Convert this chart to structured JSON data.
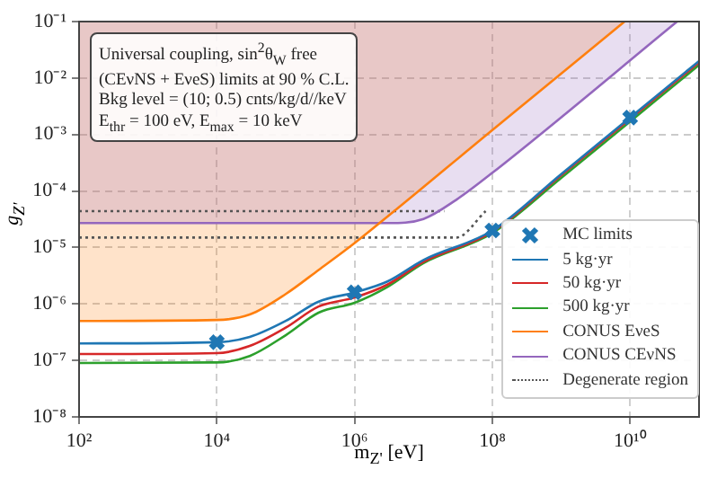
{
  "chart_data": {
    "type": "line",
    "xlabel": "m$_{Z'}$ [eV]",
    "ylabel": "g$_{Z'}$",
    "annotations": [
      "Universal coupling, sin$^{2}$θ$_{W}$ free",
      "(CEνNS + EνeS) limits at 90 % C.L.",
      "Bkg level = (10; 0.5) cnts/kg/d//keV",
      "E$_{thr}$ = 100 eV, E$_{max}$ = 10 keV"
    ],
    "log": "xy",
    "xlim": [
      100,
      100000000000.0
    ],
    "ylim": [
      1e-08,
      0.1
    ],
    "xticks": [
      {
        "value": 100,
        "label": "10²"
      },
      {
        "value": 10000,
        "label": "10⁴"
      },
      {
        "value": 1000000,
        "label": "10⁶"
      },
      {
        "value": 100000000,
        "label": "10⁸"
      },
      {
        "value": 10000000000,
        "label": "10¹⁰"
      }
    ],
    "yticks": [
      {
        "value": 1e-08,
        "label": "10⁻⁸"
      },
      {
        "value": 1e-07,
        "label": "10⁻⁷"
      },
      {
        "value": 1e-06,
        "label": "10⁻⁶"
      },
      {
        "value": 1e-05,
        "label": "10⁻⁵"
      },
      {
        "value": 0.0001,
        "label": "10⁻⁴"
      },
      {
        "value": 0.001,
        "label": "10⁻³"
      },
      {
        "value": 0.01,
        "label": "10⁻²"
      },
      {
        "value": 0.1,
        "label": "10⁻¹"
      }
    ],
    "grid": true,
    "legend": "bottom right",
    "marker": "none",
    "line_style": "solid",
    "series": [
      {
        "name": "MC limits",
        "type": "scatter",
        "marker": "cross",
        "color": "#1f77b4",
        "x": [
          10000,
          1000000,
          100000000,
          10000000000
        ],
        "values": [
          2.1e-07,
          1.6e-06,
          2e-05,
          0.002
        ]
      },
      {
        "name": "5 kg·yr",
        "color": "#1f77b4",
        "x": [
          100,
          10000,
          30000,
          100000,
          300000,
          1000000,
          3000000,
          10000000,
          100000000,
          1000000000,
          10000000000,
          100000000000
        ],
        "values": [
          2e-07,
          2.1e-07,
          2.6e-07,
          5e-07,
          1.1e-06,
          1.6e-06,
          2.5e-06,
          6e-06,
          2e-05,
          0.0002,
          0.002,
          0.02
        ]
      },
      {
        "name": "50 kg·yr",
        "color": "#d62728",
        "x": [
          100,
          10000,
          30000,
          100000,
          300000,
          1000000,
          3000000,
          10000000,
          100000000,
          1000000000,
          10000000000,
          100000000000
        ],
        "values": [
          1.3e-07,
          1.35e-07,
          1.8e-07,
          3.8e-07,
          9e-07,
          1.3e-06,
          2.2e-06,
          5.6e-06,
          1.9e-05,
          0.00019,
          0.0019,
          0.019
        ]
      },
      {
        "name": "500 kg·yr",
        "color": "#2ca02c",
        "x": [
          100,
          10000,
          30000,
          100000,
          300000,
          1000000,
          3000000,
          10000000,
          100000000,
          1000000000,
          10000000000,
          100000000000
        ],
        "values": [
          9e-08,
          9.2e-08,
          1.2e-07,
          2.8e-07,
          7e-07,
          1.05e-06,
          2e-06,
          5.3e-06,
          1.8e-05,
          0.00017,
          0.0017,
          0.017
        ]
      },
      {
        "name": "CONUS EνeS",
        "color": "#ff7f0e",
        "x": [
          100,
          10000,
          30000,
          100000,
          300000,
          1000000,
          100000000,
          8300000000
        ],
        "values": [
          5e-07,
          5.2e-07,
          6.5e-07,
          1.5e-06,
          4e-06,
          1.2e-05,
          0.0012,
          0.1
        ],
        "lower": [
          5e-07,
          5.2e-07,
          6.5e-07,
          1.5e-06,
          4e-06,
          1.2e-05,
          0.0012,
          0.1
        ],
        "upper": [
          0.1,
          0.1,
          0.1,
          0.1,
          0.1,
          0.1,
          0.1,
          0.1
        ]
      },
      {
        "name": "CONUS CEνNS",
        "color": "#9467bd",
        "x": [
          100,
          3000000,
          10000000,
          30000000,
          100000000,
          48000000000
        ],
        "values": [
          2.7e-05,
          2.7e-05,
          3.2e-05,
          7e-05,
          0.00021,
          0.1
        ],
        "lower": [
          2.7e-05,
          2.7e-05,
          3.2e-05,
          7e-05,
          0.00021,
          0.1
        ],
        "upper": [
          0.1,
          0.1,
          0.1,
          0.1,
          0.1,
          0.1
        ]
      },
      {
        "name": "Degenerate region",
        "line_style": "dotted",
        "color": "#555555",
        "x": [
          100,
          20000000
        ],
        "values": [
          4.4e-05,
          4.4e-05
        ]
      },
      {
        "line_style": "dotted",
        "color": "#555555",
        "x": [
          100,
          30000000,
          80000000
        ],
        "values": [
          1.5e-05,
          1.5e-05,
          4.4e-05
        ]
      }
    ]
  }
}
